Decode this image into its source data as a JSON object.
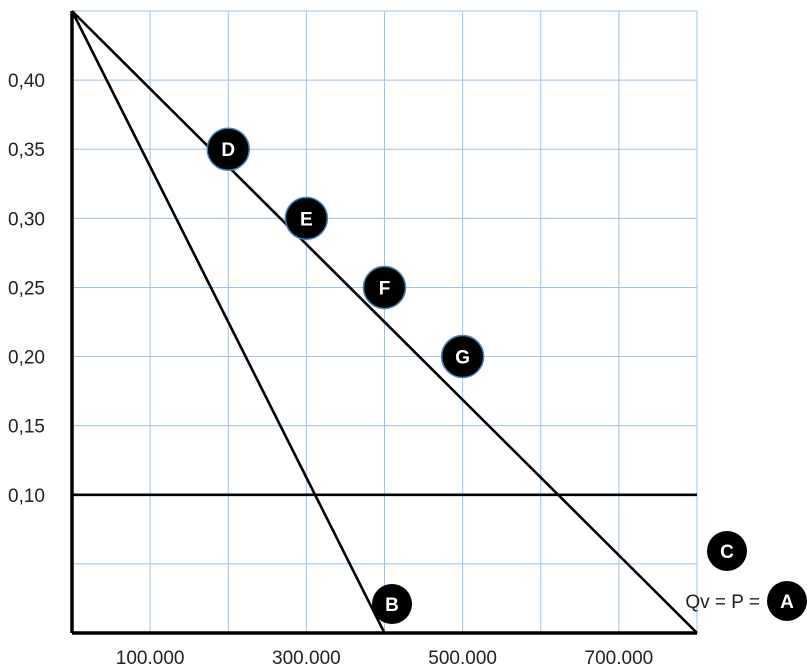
{
  "chart_data": {
    "type": "line",
    "title": "",
    "xlabel": "",
    "ylabel": "",
    "xlim": [
      0,
      800000
    ],
    "ylim": [
      0,
      0.45
    ],
    "grid": true,
    "x_gridlines": [
      0,
      100000,
      200000,
      300000,
      400000,
      500000,
      600000,
      700000,
      800000
    ],
    "y_gridlines": [
      0,
      0.05,
      0.1,
      0.15,
      0.2,
      0.25,
      0.3,
      0.35,
      0.4,
      0.45
    ],
    "x_tick_labels": [
      {
        "x": 100000,
        "text": "100.000"
      },
      {
        "x": 300000,
        "text": "300.000"
      },
      {
        "x": 500000,
        "text": "500.000"
      },
      {
        "x": 700000,
        "text": "700.000"
      }
    ],
    "y_tick_labels": [
      {
        "y": 0.1,
        "text": "0,10"
      },
      {
        "y": 0.15,
        "text": "0,15"
      },
      {
        "y": 0.2,
        "text": "0,20"
      },
      {
        "y": 0.25,
        "text": "0,25"
      },
      {
        "y": 0.3,
        "text": "0,30"
      },
      {
        "y": 0.35,
        "text": "0,35"
      },
      {
        "y": 0.4,
        "text": "0,40"
      }
    ],
    "lines": [
      {
        "id": "A",
        "points": [
          [
            0,
            0.45
          ],
          [
            800000,
            0
          ]
        ]
      },
      {
        "id": "B",
        "points": [
          [
            0,
            0.45
          ],
          [
            400000,
            0
          ]
        ]
      },
      {
        "id": "C",
        "points": [
          [
            0,
            0.1
          ],
          [
            800000,
            0.1
          ]
        ]
      }
    ],
    "markers": [
      {
        "label": "D",
        "x": 200000,
        "y": 0.35
      },
      {
        "label": "E",
        "x": 300000,
        "y": 0.3
      },
      {
        "label": "F",
        "x": 400000,
        "y": 0.25
      },
      {
        "label": "G",
        "x": 500000,
        "y": 0.2
      }
    ],
    "line_labels": [
      {
        "label": "A",
        "prefix": "Qv = P = "
      },
      {
        "label": "B",
        "prefix": ""
      },
      {
        "label": "C",
        "prefix": ""
      }
    ],
    "colors": {
      "grid": "#9ec3e6",
      "line": "#000000",
      "marker_fill": "#000000",
      "marker_text": "#ffffff"
    }
  }
}
